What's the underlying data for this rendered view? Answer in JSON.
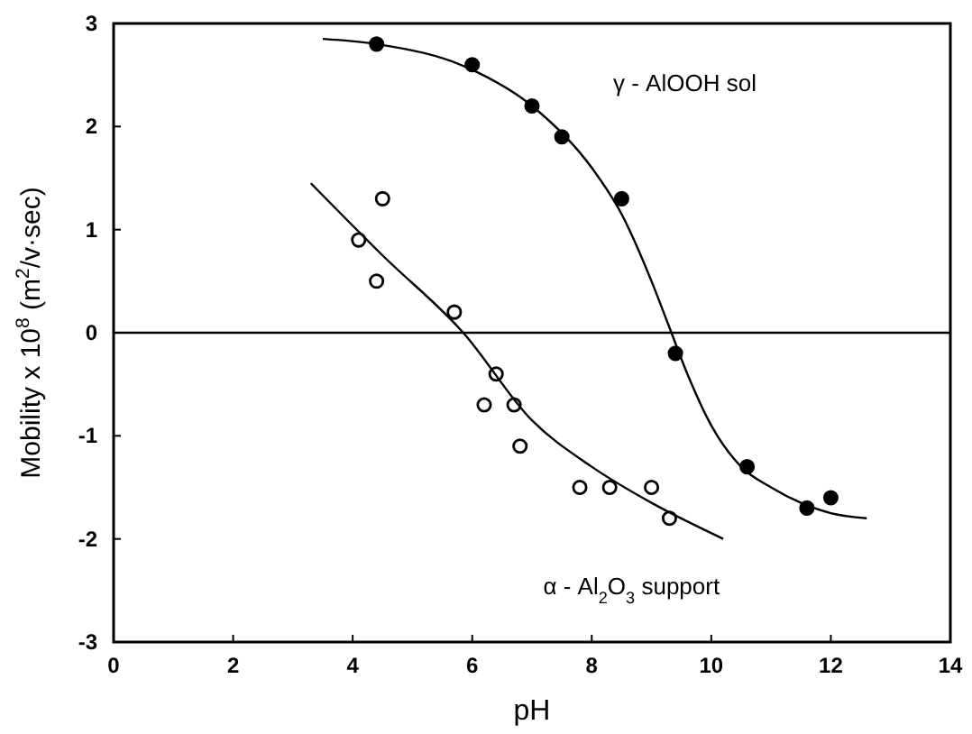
{
  "chart_data": {
    "type": "scatter",
    "xlabel": "pH",
    "ylabel": "Mobility x 10$^{8}$ (m$^{2}$/v·sec)",
    "xlim": [
      0,
      14
    ],
    "ylim": [
      -3,
      3
    ],
    "xticks": [
      0,
      2,
      4,
      6,
      8,
      10,
      12,
      14
    ],
    "yticks": [
      -3,
      -2,
      -1,
      0,
      1,
      2,
      3
    ],
    "ref_lines": [
      {
        "axis": "y",
        "value": 0,
        "color": "#000000"
      }
    ],
    "series": [
      {
        "name": "γ - AlOOH sol",
        "color": "#000000",
        "marker": "circle",
        "x": [
          4.4,
          6.0,
          7.0,
          7.5,
          8.5,
          9.4,
          10.6,
          11.6,
          12.0
        ],
        "values": [
          2.8,
          2.6,
          2.2,
          1.9,
          1.3,
          -0.2,
          -1.3,
          -1.7,
          -1.6
        ]
      },
      {
        "name": "α - Al$_{2}$O$_{3}$ support",
        "color": "#000000",
        "marker": "circle",
        "x": [
          4.1,
          4.4,
          4.5,
          5.7,
          6.2,
          6.4,
          6.7,
          6.8,
          7.8,
          8.3,
          9.0,
          9.3
        ],
        "values": [
          0.9,
          0.5,
          1.3,
          0.2,
          -0.7,
          -0.4,
          -0.7,
          -1.1,
          -1.5,
          -1.5,
          -1.5,
          -1.8
        ]
      },
      {
        "type": "line",
        "color": "#000000",
        "marker": "none",
        "x": [
          3.5,
          4.4,
          6,
          7,
          8,
          8.5,
          9,
          9.3,
          9.6,
          10,
          10.5,
          11,
          11.5,
          12,
          12.6
        ],
        "values": [
          2.85,
          2.8,
          2.55,
          2.2,
          1.6,
          1.15,
          0.5,
          0.05,
          -0.4,
          -0.9,
          -1.3,
          -1.5,
          -1.65,
          -1.75,
          -1.8
        ]
      },
      {
        "type": "line",
        "color": "#000000",
        "marker": "none",
        "x": [
          3.3,
          4.5,
          5.85,
          7,
          8,
          9,
          10.2
        ],
        "values": [
          1.45,
          0.75,
          0,
          -0.85,
          -1.3,
          -1.65,
          -2.0
        ]
      }
    ]
  }
}
